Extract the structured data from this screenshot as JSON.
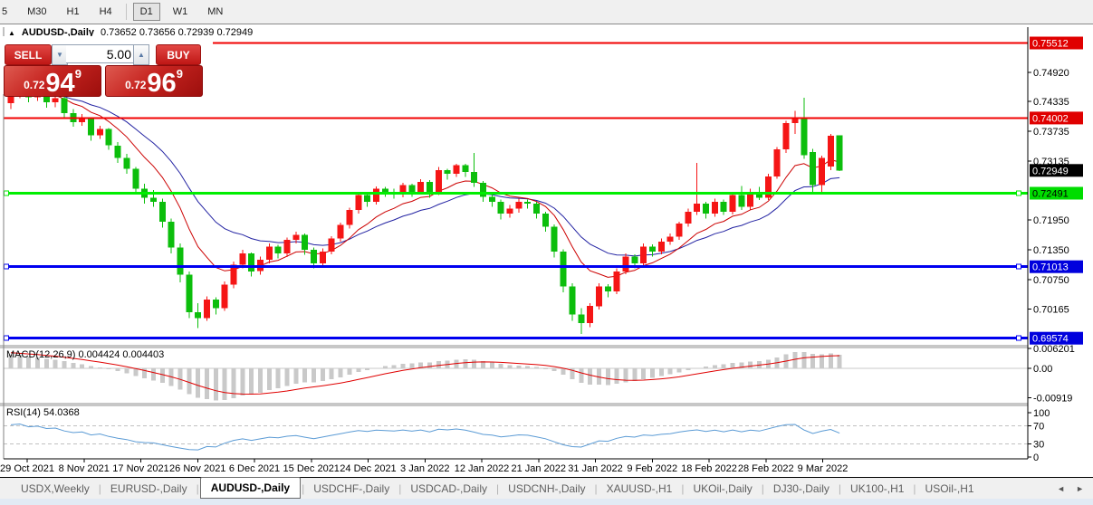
{
  "toolbar": {
    "timeframes": [
      "5",
      "M30",
      "H1",
      "H4",
      "D1",
      "W1",
      "MN"
    ],
    "active_timeframe": "D1"
  },
  "window_title": {
    "arrow": "▲",
    "symbol": "AUDUSD-,Daily",
    "ohlc": "0.73652 0.73656 0.72939 0.72949"
  },
  "trade_panel": {
    "sell_label": "SELL",
    "buy_label": "BUY",
    "volume": "5.00",
    "spinner_down": "▼",
    "spinner_up": "▲",
    "sell_price": {
      "prefix": "0.72",
      "big": "94",
      "sup": "9"
    },
    "buy_price": {
      "prefix": "0.72",
      "big": "96",
      "sup": "9"
    }
  },
  "chart_data": {
    "type": "candlestick",
    "symbol": "AUDUSD-,Daily",
    "ylim": [
      0.694,
      0.7583
    ],
    "grid": false,
    "candles": [
      [
        0.743,
        0.7455,
        0.7418,
        0.7448
      ],
      [
        0.7448,
        0.7474,
        0.744,
        0.7468
      ],
      [
        0.7468,
        0.7472,
        0.7432,
        0.7442
      ],
      [
        0.7442,
        0.7461,
        0.7435,
        0.7455
      ],
      [
        0.7455,
        0.7458,
        0.7421,
        0.7432
      ],
      [
        0.7432,
        0.7448,
        0.7422,
        0.744
      ],
      [
        0.744,
        0.7443,
        0.74,
        0.741
      ],
      [
        0.741,
        0.7418,
        0.7383,
        0.7392
      ],
      [
        0.7392,
        0.7408,
        0.7385,
        0.74
      ],
      [
        0.74,
        0.7402,
        0.7355,
        0.7365
      ],
      [
        0.7365,
        0.7385,
        0.7358,
        0.7378
      ],
      [
        0.7378,
        0.738,
        0.7336,
        0.7345
      ],
      [
        0.7345,
        0.7352,
        0.731,
        0.732
      ],
      [
        0.732,
        0.7328,
        0.7288,
        0.7298
      ],
      [
        0.7298,
        0.7302,
        0.7248,
        0.7258
      ],
      [
        0.7258,
        0.7268,
        0.7228,
        0.724
      ],
      [
        0.724,
        0.7255,
        0.7222,
        0.7232
      ],
      [
        0.7232,
        0.7238,
        0.718,
        0.7192
      ],
      [
        0.7192,
        0.7198,
        0.7128,
        0.714
      ],
      [
        0.714,
        0.7148,
        0.707,
        0.7085
      ],
      [
        0.7085,
        0.7092,
        0.6998,
        0.701
      ],
      [
        0.701,
        0.7028,
        0.6978,
        0.6998
      ],
      [
        0.6998,
        0.7042,
        0.6992,
        0.7035
      ],
      [
        0.7035,
        0.704,
        0.7005,
        0.7018
      ],
      [
        0.7018,
        0.7072,
        0.7012,
        0.7065
      ],
      [
        0.7065,
        0.7112,
        0.7058,
        0.7105
      ],
      [
        0.7105,
        0.7135,
        0.7098,
        0.7128
      ],
      [
        0.7128,
        0.713,
        0.7082,
        0.7092
      ],
      [
        0.7092,
        0.7122,
        0.7085,
        0.7115
      ],
      [
        0.7115,
        0.7148,
        0.7108,
        0.7142
      ],
      [
        0.7142,
        0.7145,
        0.7118,
        0.7128
      ],
      [
        0.7128,
        0.716,
        0.7121,
        0.7155
      ],
      [
        0.7155,
        0.7172,
        0.7148,
        0.7165
      ],
      [
        0.7165,
        0.7168,
        0.7125,
        0.7135
      ],
      [
        0.7135,
        0.714,
        0.7098,
        0.7108
      ],
      [
        0.7108,
        0.7138,
        0.7102,
        0.7132
      ],
      [
        0.7132,
        0.7163,
        0.7126,
        0.7158
      ],
      [
        0.7158,
        0.719,
        0.7152,
        0.7185
      ],
      [
        0.7185,
        0.722,
        0.7178,
        0.7215
      ],
      [
        0.7215,
        0.725,
        0.7208,
        0.7245
      ],
      [
        0.7245,
        0.7248,
        0.7222,
        0.7232
      ],
      [
        0.7232,
        0.7263,
        0.7226,
        0.7258
      ],
      [
        0.7258,
        0.7262,
        0.7242,
        0.7252
      ],
      [
        0.7252,
        0.7258,
        0.7238,
        0.7248
      ],
      [
        0.7248,
        0.727,
        0.7241,
        0.7265
      ],
      [
        0.7265,
        0.7268,
        0.7242,
        0.7252
      ],
      [
        0.7252,
        0.7277,
        0.7246,
        0.7272
      ],
      [
        0.7272,
        0.7275,
        0.724,
        0.725
      ],
      [
        0.725,
        0.7302,
        0.7245,
        0.7295
      ],
      [
        0.7295,
        0.7298,
        0.7276,
        0.7288
      ],
      [
        0.7288,
        0.7308,
        0.7282,
        0.7305
      ],
      [
        0.7305,
        0.7308,
        0.7282,
        0.7292
      ],
      [
        0.7292,
        0.733,
        0.7262,
        0.727
      ],
      [
        0.727,
        0.7274,
        0.7232,
        0.7242
      ],
      [
        0.7242,
        0.7252,
        0.7222,
        0.7232
      ],
      [
        0.7232,
        0.7236,
        0.7196,
        0.7208
      ],
      [
        0.7208,
        0.7225,
        0.72,
        0.7218
      ],
      [
        0.7218,
        0.7238,
        0.721,
        0.7232
      ],
      [
        0.7232,
        0.7236,
        0.7218,
        0.7228
      ],
      [
        0.7228,
        0.7232,
        0.7198,
        0.7208
      ],
      [
        0.7208,
        0.7212,
        0.7172,
        0.7182
      ],
      [
        0.7182,
        0.7186,
        0.712,
        0.7132
      ],
      [
        0.7132,
        0.7136,
        0.705,
        0.7062
      ],
      [
        0.7062,
        0.7068,
        0.6992,
        0.7005
      ],
      [
        0.7005,
        0.7018,
        0.6966,
        0.6988
      ],
      [
        0.6988,
        0.7028,
        0.698,
        0.7022
      ],
      [
        0.7022,
        0.7068,
        0.7015,
        0.7062
      ],
      [
        0.7062,
        0.7066,
        0.704,
        0.7052
      ],
      [
        0.7052,
        0.7098,
        0.7046,
        0.7092
      ],
      [
        0.7092,
        0.7128,
        0.7086,
        0.7122
      ],
      [
        0.7122,
        0.7126,
        0.7098,
        0.7108
      ],
      [
        0.7108,
        0.7148,
        0.7102,
        0.7142
      ],
      [
        0.7142,
        0.7146,
        0.7122,
        0.7132
      ],
      [
        0.7132,
        0.7158,
        0.7126,
        0.7152
      ],
      [
        0.7152,
        0.7168,
        0.7145,
        0.7162
      ],
      [
        0.7162,
        0.7192,
        0.7155,
        0.7188
      ],
      [
        0.7188,
        0.7218,
        0.7182,
        0.7212
      ],
      [
        0.7212,
        0.731,
        0.7205,
        0.7228
      ],
      [
        0.7228,
        0.7232,
        0.7198,
        0.7208
      ],
      [
        0.7208,
        0.7238,
        0.7202,
        0.7232
      ],
      [
        0.7232,
        0.7236,
        0.7205,
        0.7212
      ],
      [
        0.7212,
        0.725,
        0.7206,
        0.7245
      ],
      [
        0.7245,
        0.7264,
        0.7215,
        0.7222
      ],
      [
        0.7222,
        0.7258,
        0.7216,
        0.7252
      ],
      [
        0.7252,
        0.7262,
        0.7235,
        0.724
      ],
      [
        0.724,
        0.7288,
        0.7235,
        0.7283
      ],
      [
        0.7283,
        0.7342,
        0.7278,
        0.7337
      ],
      [
        0.7337,
        0.7395,
        0.733,
        0.739
      ],
      [
        0.739,
        0.7415,
        0.7368,
        0.7398
      ],
      [
        0.7398,
        0.7441,
        0.7318,
        0.7325
      ],
      [
        0.7332,
        0.7338,
        0.7252,
        0.7265
      ],
      [
        0.7265,
        0.7325,
        0.7248,
        0.732
      ],
      [
        0.7303,
        0.7368,
        0.7295,
        0.7365
      ],
      [
        0.73652,
        0.73656,
        0.72939,
        0.72949
      ]
    ],
    "date_labels": [
      "29 Oct 2021",
      "8 Nov 2021",
      "17 Nov 2021",
      "26 Nov 2021",
      "6 Dec 2021",
      "15 Dec 2021",
      "24 Dec 2021",
      "3 Jan 2022",
      "12 Jan 2022",
      "21 Jan 2022",
      "31 Jan 2022",
      "9 Feb 2022",
      "18 Feb 2022",
      "28 Feb 2022",
      "9 Mar 2022"
    ],
    "price_axis_ticks": [
      {
        "label": "0.74920",
        "price": 0.7492
      },
      {
        "label": "0.74335",
        "price": 0.74335
      },
      {
        "label": "0.73735",
        "price": 0.73735
      },
      {
        "label": "0.73135",
        "price": 0.73135
      },
      {
        "label": "0.71950",
        "price": 0.7195
      },
      {
        "label": "0.71350",
        "price": 0.7135
      },
      {
        "label": "0.70750",
        "price": 0.7075
      },
      {
        "label": "0.70165",
        "price": 0.70165
      }
    ],
    "hlines": [
      {
        "label": "0.75512",
        "price": 0.75512,
        "color": "#f20000",
        "width": 2,
        "badge_bg": "#e00000",
        "badge_fg": "#ffffff",
        "handles": false
      },
      {
        "label": "0.74002",
        "price": 0.74002,
        "color": "#f20000",
        "width": 2,
        "badge_bg": "#e00000",
        "badge_fg": "#ffffff",
        "handles": false
      },
      {
        "label": "0.72491",
        "price": 0.72491,
        "color": "#00ee00",
        "width": 3,
        "badge_bg": "#00dd00",
        "badge_fg": "#000000",
        "handles": true
      },
      {
        "label": "0.71013",
        "price": 0.71013,
        "color": "#0000f0",
        "width": 3,
        "badge_bg": "#0000dd",
        "badge_fg": "#ffffff",
        "handles": true
      },
      {
        "label": "0.69574",
        "price": 0.69574,
        "color": "#0000f0",
        "width": 3,
        "badge_bg": "#0000dd",
        "badge_fg": "#ffffff",
        "handles": true
      }
    ],
    "current_price": {
      "label": "0.72949",
      "price": 0.72949,
      "badge_bg": "#000000",
      "badge_fg": "#ffffff"
    },
    "indicators": {
      "macd": {
        "label": "MACD(12,26,9) 0.004424 0.004403",
        "params": [
          12,
          26,
          9
        ],
        "main_value": "0.004424",
        "signal_value": "0.004403",
        "axis_labels": [
          {
            "label": "0.006201",
            "value": 0.006201
          },
          {
            "label": "0.00",
            "value": 0
          },
          {
            "label": "-0.00919",
            "value": -0.00919
          }
        ]
      },
      "rsi": {
        "label": "RSI(14) 54.0368",
        "period": 14,
        "value": "54.0368",
        "axis_labels": [
          {
            "label": "100",
            "value": 100
          },
          {
            "label": "70",
            "value": 70
          },
          {
            "label": "30",
            "value": 30
          },
          {
            "label": "0",
            "value": 0
          }
        ],
        "dashed_levels": [
          70,
          30
        ]
      }
    }
  },
  "tabs": {
    "items": [
      "USDX,Weekly",
      "EURUSD-,Daily",
      "AUDUSD-,Daily",
      "USDCHF-,Daily",
      "USDCAD-,Daily",
      "USDCNH-,Daily",
      "XAUUSD-,H1",
      "UKOil-,Daily",
      "DJ30-,Daily",
      "UK100-,H1",
      "USOil-,H1"
    ],
    "active": "AUDUSD-,Daily",
    "scroll_left": "◄",
    "scroll_right": "►"
  },
  "colors": {
    "candle_up": "#f51515",
    "candle_down": "#0cbe0c",
    "ma_fast": "#cc0000",
    "ma_slow": "#2222a2",
    "macd_histogram": "#c9c9c9",
    "macd_signal": "#e00000",
    "rsi_line": "#5b9bd5",
    "level_dashed": "#c0c0c0",
    "axis": "#000000"
  }
}
